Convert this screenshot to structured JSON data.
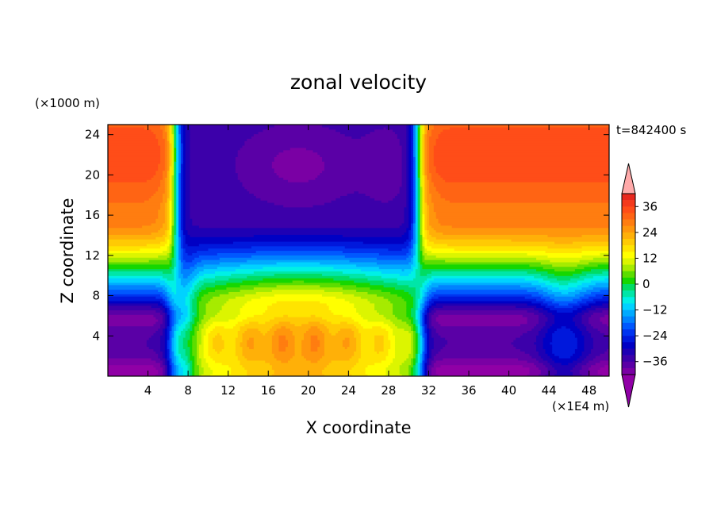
{
  "chart_data": {
    "type": "heatmap",
    "title": "zonal velocity",
    "xlabel": "X coordinate",
    "ylabel": "Z coordinate",
    "x_unit": "(×1E4 m)",
    "y_unit": "(×1000 m)",
    "time_label": "t=842400 s",
    "xlim": [
      0,
      50
    ],
    "ylim": [
      0,
      25
    ],
    "x_ticks": [
      4,
      8,
      12,
      16,
      20,
      24,
      28,
      32,
      36,
      40,
      44,
      48
    ],
    "y_ticks": [
      4,
      8,
      12,
      16,
      20,
      24
    ],
    "colorbar": {
      "labels": [
        36,
        24,
        12,
        0,
        -12,
        -24,
        -36
      ],
      "levels": [
        42,
        39,
        36,
        33,
        30,
        27,
        24,
        21,
        18,
        15,
        12,
        9,
        6,
        3,
        0,
        -3,
        -6,
        -9,
        -12,
        -15,
        -18,
        -21,
        -24,
        -27,
        -30,
        -33,
        -36,
        -39,
        -42
      ],
      "colors": [
        "#ffaaaa",
        "#e8281e",
        "#f43a1c",
        "#ff4d18",
        "#ff6414",
        "#ff7d10",
        "#ff960c",
        "#ffb008",
        "#ffca04",
        "#ffe400",
        "#ffff00",
        "#dcf500",
        "#a6eb00",
        "#5cdd00",
        "#16d700",
        "#00dc64",
        "#00e6a8",
        "#00f0e6",
        "#00d2ff",
        "#00aaff",
        "#0082ff",
        "#0058ff",
        "#0034f0",
        "#0018dc",
        "#0000c4",
        "#1e00b4",
        "#3c00aa",
        "#5a00a6",
        "#7a00a4",
        "#9000a6"
      ]
    }
  }
}
